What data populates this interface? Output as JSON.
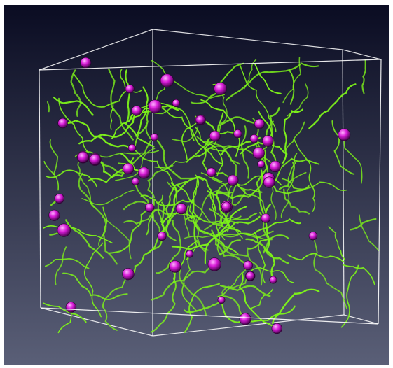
{
  "scene": {
    "background_top": "#0a0c22",
    "background_bottom": "#5a5f77",
    "box_color": "#ffffff",
    "strand_color": "#7df21a",
    "sphere_color": "#d81bd8",
    "sphere_highlight": "#ffb8ff",
    "sphere_count": 62,
    "strand_count": 170
  }
}
